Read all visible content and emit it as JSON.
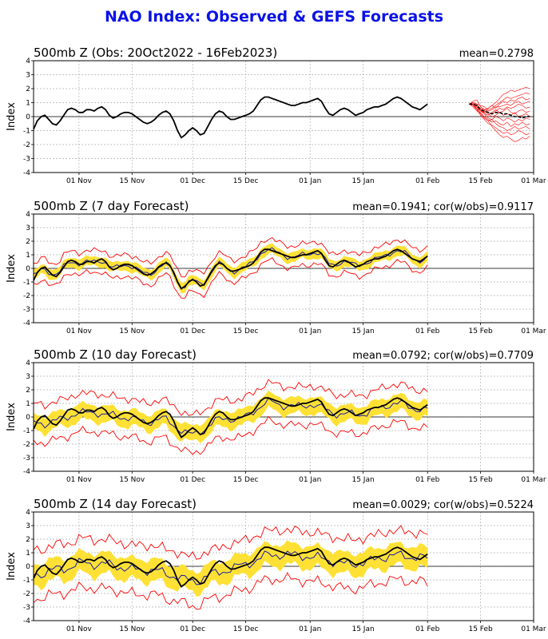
{
  "title": "NAO Index: Observed & GEFS Forecasts",
  "colors": {
    "title": "#0a12e6",
    "observed": "#000000",
    "ensemble": "#ff0000",
    "spread_band": "#ffe135",
    "ens_mean": "#1a1aa0",
    "grid": "#b0b0b0"
  },
  "chart_data": [
    {
      "type": "line",
      "title": "500mb Z (Obs: 20Oct2022 - 16Feb2023)",
      "stat_label": "mean=0.2798",
      "ylabel": "Index",
      "ylim": [
        -4,
        4
      ],
      "yticks": [
        -4,
        -3,
        -2,
        -1,
        0,
        1,
        2,
        3,
        4
      ],
      "xlim_days": [
        0,
        132
      ],
      "xticks": [
        {
          "day": 12,
          "label": "01 Nov"
        },
        {
          "day": 26,
          "label": "15 Nov"
        },
        {
          "day": 42,
          "label": "01 Dec"
        },
        {
          "day": 56,
          "label": "15 Dec"
        },
        {
          "day": 73,
          "label": "01 Jan"
        },
        {
          "day": 87,
          "label": "15 Jan"
        },
        {
          "day": 104,
          "label": "01 Feb"
        },
        {
          "day": 118,
          "label": "15 Feb"
        },
        {
          "day": 132,
          "label": "01 Mar"
        }
      ],
      "series": [
        {
          "role": "observed",
          "start_day": 0,
          "values": [
            -0.9,
            -0.3,
            0.0,
            0.1,
            -0.2,
            -0.5,
            -0.6,
            -0.3,
            0.1,
            0.5,
            0.6,
            0.5,
            0.3,
            0.3,
            0.5,
            0.5,
            0.4,
            0.6,
            0.7,
            0.5,
            0.1,
            -0.1,
            0.0,
            0.2,
            0.3,
            0.3,
            0.2,
            0.0,
            -0.2,
            -0.4,
            -0.5,
            -0.4,
            -0.2,
            0.1,
            0.3,
            0.4,
            0.2,
            -0.3,
            -1.0,
            -1.5,
            -1.3,
            -1.0,
            -0.8,
            -1.0,
            -1.3,
            -1.2,
            -0.7,
            -0.2,
            0.2,
            0.4,
            0.3,
            0.0,
            -0.2,
            -0.2,
            -0.1,
            0.0,
            0.1,
            0.2,
            0.4,
            0.8,
            1.2,
            1.4,
            1.4,
            1.3,
            1.2,
            1.1,
            1.0,
            0.9,
            0.8,
            0.8,
            0.9,
            1.0,
            1.0,
            1.1,
            1.2,
            1.3,
            1.1,
            0.6,
            0.2,
            0.1,
            0.3,
            0.5,
            0.6,
            0.5,
            0.3,
            0.1,
            0.2,
            0.3,
            0.5,
            0.6,
            0.7,
            0.7,
            0.8,
            0.9,
            1.1,
            1.3,
            1.4,
            1.3,
            1.1,
            0.9,
            0.7,
            0.6,
            0.5,
            0.7,
            0.9
          ]
        },
        {
          "role": "ensemble_member",
          "start_day": 115,
          "values": [
            0.9,
            1.1,
            1.2,
            0.7,
            0.5,
            0.6,
            0.8,
            1.0,
            1.3,
            1.6,
            1.7,
            1.9,
            1.8,
            1.9,
            2.0,
            2.1,
            2.0
          ]
        },
        {
          "role": "ensemble_member",
          "start_day": 115,
          "values": [
            0.9,
            1.0,
            0.9,
            0.8,
            0.7,
            0.5,
            0.6,
            0.8,
            1.0,
            1.2,
            1.4,
            1.3,
            1.4,
            1.5,
            1.6,
            1.7,
            1.6
          ]
        },
        {
          "role": "ensemble_member",
          "start_day": 115,
          "values": [
            0.9,
            1.0,
            0.7,
            0.4,
            0.3,
            0.6,
            0.8,
            0.6,
            0.9,
            1.1,
            1.0,
            1.2,
            1.1,
            1.3,
            1.4,
            1.2,
            1.3
          ]
        },
        {
          "role": "ensemble_member",
          "start_day": 115,
          "values": [
            0.9,
            0.9,
            0.8,
            0.6,
            0.5,
            0.4,
            0.5,
            0.7,
            0.7,
            0.8,
            0.9,
            0.8,
            1.0,
            1.1,
            0.9,
            1.0,
            1.1
          ]
        },
        {
          "role": "ensemble_member",
          "start_day": 115,
          "values": [
            0.9,
            1.0,
            0.9,
            0.5,
            0.4,
            0.3,
            0.2,
            0.4,
            0.6,
            0.5,
            0.7,
            0.6,
            0.7,
            0.9,
            0.8,
            0.6,
            0.7
          ]
        },
        {
          "role": "ensemble_member",
          "start_day": 115,
          "values": [
            0.9,
            0.9,
            0.7,
            0.5,
            0.2,
            0.1,
            0.3,
            0.5,
            0.3,
            0.4,
            0.6,
            0.3,
            0.2,
            0.4,
            0.5,
            0.3,
            0.4
          ]
        },
        {
          "role": "ensemble_member",
          "start_day": 115,
          "values": [
            0.9,
            0.9,
            0.8,
            0.5,
            0.3,
            0.2,
            0.0,
            0.1,
            0.3,
            0.1,
            0.2,
            0.1,
            0.3,
            0.0,
            0.1,
            0.2,
            0.0
          ]
        },
        {
          "role": "ensemble_member",
          "start_day": 115,
          "values": [
            0.9,
            0.8,
            0.6,
            0.4,
            0.2,
            -0.1,
            -0.2,
            0.0,
            -0.1,
            -0.3,
            -0.1,
            -0.2,
            -0.4,
            -0.2,
            -0.3,
            -0.1,
            -0.2
          ]
        },
        {
          "role": "ensemble_member",
          "start_day": 115,
          "values": [
            0.9,
            0.8,
            0.5,
            0.3,
            0.0,
            -0.2,
            -0.4,
            -0.3,
            -0.5,
            -0.6,
            -0.4,
            -0.7,
            -0.5,
            -0.6,
            -0.4,
            -0.6,
            -0.5
          ]
        },
        {
          "role": "ensemble_member",
          "start_day": 115,
          "values": [
            0.9,
            0.9,
            0.6,
            0.2,
            -0.1,
            -0.3,
            -0.2,
            -0.5,
            -0.7,
            -0.8,
            -1.0,
            -0.9,
            -0.7,
            -0.9,
            -0.8,
            -0.7,
            -0.9
          ]
        },
        {
          "role": "ensemble_member",
          "start_day": 115,
          "values": [
            0.9,
            0.8,
            0.5,
            0.1,
            -0.2,
            -0.5,
            -0.6,
            -0.8,
            -1.0,
            -1.2,
            -1.1,
            -1.3,
            -1.2,
            -1.0,
            -1.1,
            -1.3,
            -1.2
          ]
        },
        {
          "role": "ensemble_member",
          "start_day": 115,
          "values": [
            0.9,
            0.7,
            0.4,
            0.2,
            -0.1,
            -0.3,
            -0.7,
            -1.0,
            -1.3,
            -1.5,
            -1.4,
            -1.6,
            -1.8,
            -1.7,
            -1.5,
            -1.6,
            -1.4
          ]
        },
        {
          "role": "ensemble_mean",
          "start_day": 115,
          "values": [
            0.9,
            0.9,
            0.8,
            0.5,
            0.4,
            0.3,
            0.2,
            0.3,
            0.3,
            0.2,
            0.2,
            0.1,
            0.0,
            0.0,
            -0.1,
            0.0,
            0.0
          ]
        }
      ]
    },
    {
      "type": "line",
      "title": "500mb Z (7 day Forecast)",
      "stat_label": "mean=0.1941; cor(w/obs)=0.9117",
      "ylabel": "Index",
      "ylim": [
        -4,
        4
      ],
      "yticks": [
        -4,
        -3,
        -2,
        -1,
        0,
        1,
        2,
        3,
        4
      ],
      "xlim_days": [
        0,
        132
      ],
      "xticks": [
        {
          "day": 12,
          "label": "01 Nov"
        },
        {
          "day": 26,
          "label": "15 Nov"
        },
        {
          "day": 42,
          "label": "01 Dec"
        },
        {
          "day": 56,
          "label": "15 Dec"
        },
        {
          "day": 73,
          "label": "01 Jan"
        },
        {
          "day": 87,
          "label": "15 Jan"
        },
        {
          "day": 104,
          "label": "01 Feb"
        },
        {
          "day": 118,
          "label": "15 Feb"
        },
        {
          "day": 132,
          "label": "01 Mar"
        }
      ],
      "forecast": {
        "mean_offset": 0.0,
        "band_halfwidth": 0.35,
        "envelope_halfwidth": 0.8,
        "smooth": 1,
        "noise": 0.25
      }
    },
    {
      "type": "line",
      "title": "500mb Z (10 day Forecast)",
      "stat_label": "mean=0.0792; cor(w/obs)=0.7709",
      "ylabel": "Index",
      "ylim": [
        -4,
        4
      ],
      "yticks": [
        -4,
        -3,
        -2,
        -1,
        0,
        1,
        2,
        3,
        4
      ],
      "xlim_days": [
        0,
        132
      ],
      "xticks": [
        {
          "day": 12,
          "label": "01 Nov"
        },
        {
          "day": 26,
          "label": "15 Nov"
        },
        {
          "day": 42,
          "label": "01 Dec"
        },
        {
          "day": 56,
          "label": "15 Dec"
        },
        {
          "day": 73,
          "label": "01 Jan"
        },
        {
          "day": 87,
          "label": "15 Jan"
        },
        {
          "day": 104,
          "label": "01 Feb"
        },
        {
          "day": 118,
          "label": "15 Feb"
        },
        {
          "day": 132,
          "label": "01 Mar"
        }
      ],
      "forecast": {
        "mean_offset": -0.15,
        "band_halfwidth": 0.6,
        "envelope_halfwidth": 1.4,
        "smooth": 3,
        "noise": 0.35
      }
    },
    {
      "type": "line",
      "title": "500mb Z (14 day Forecast)",
      "stat_label": "mean=0.0029; cor(w/obs)=0.5224",
      "ylabel": "Index",
      "ylim": [
        -4,
        4
      ],
      "yticks": [
        -4,
        -3,
        -2,
        -1,
        0,
        1,
        2,
        3,
        4
      ],
      "xlim_days": [
        0,
        132
      ],
      "xticks": [
        {
          "day": 12,
          "label": "01 Nov"
        },
        {
          "day": 26,
          "label": "15 Nov"
        },
        {
          "day": 42,
          "label": "01 Dec"
        },
        {
          "day": 56,
          "label": "15 Dec"
        },
        {
          "day": 73,
          "label": "01 Jan"
        },
        {
          "day": 87,
          "label": "15 Jan"
        },
        {
          "day": 104,
          "label": "01 Feb"
        },
        {
          "day": 118,
          "label": "15 Feb"
        },
        {
          "day": 132,
          "label": "01 Mar"
        }
      ],
      "forecast": {
        "mean_offset": -0.2,
        "band_halfwidth": 0.8,
        "envelope_halfwidth": 1.8,
        "smooth": 5,
        "noise": 0.45
      }
    }
  ]
}
